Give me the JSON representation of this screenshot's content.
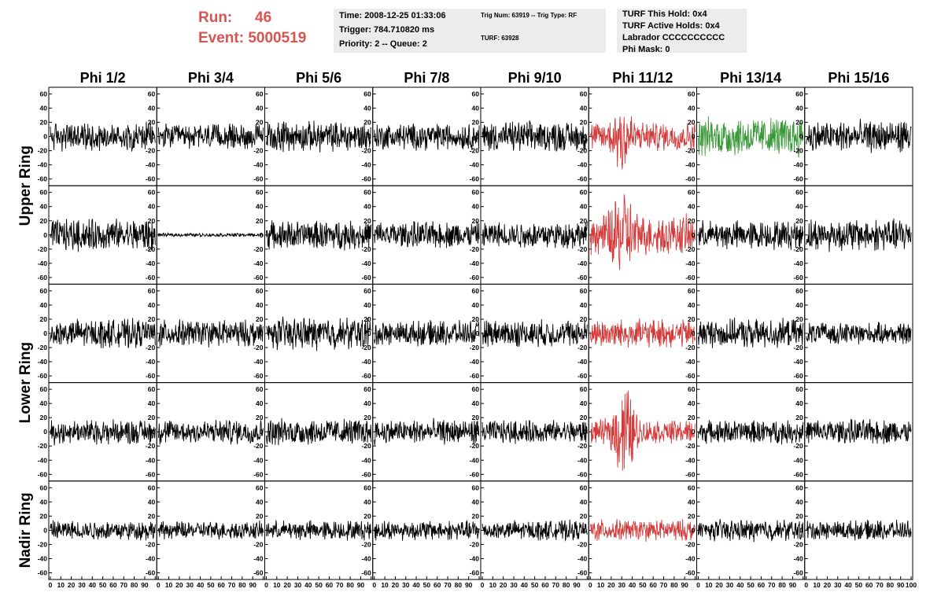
{
  "run": {
    "run_label": "Run:",
    "run_value": "46",
    "event_label": "Event:",
    "event_value": "5000519"
  },
  "info": {
    "time": "Time: 2008-12-25 01:33:06",
    "trigger": "Trigger: 784.710820 ms",
    "priority": "Priority: 2 -- Queue: 2",
    "trig_num": "Trig Num: 63919 -- Trig Type: RF",
    "turf": "TURF: 63928",
    "turf_hold": "TURF This Hold: 0x4",
    "turf_active": "TURF Active Holds: 0x4",
    "labrador": "Labrador CCCCCCCCCC",
    "phi_mask": "Phi Mask: 0"
  },
  "colors": {
    "normal": "#000000",
    "red": "#d43a3a",
    "green": "#3a9a3a",
    "run_text": "#d9534f",
    "info_bg": "#ececec"
  },
  "chart_data": {
    "type": "line",
    "columns": [
      "Phi 1/2",
      "Phi 3/4",
      "Phi 5/6",
      "Phi 7/8",
      "Phi 9/10",
      "Phi 11/12",
      "Phi 13/14",
      "Phi 15/16"
    ],
    "ring_labels": [
      "Upper Ring",
      "Lower Ring",
      "Nadir Ring"
    ],
    "ring_row_spans": [
      2,
      2,
      1
    ],
    "xlim": [
      0,
      100
    ],
    "ylim": [
      -65,
      65
    ],
    "yticks": [
      -60,
      -40,
      -20,
      0,
      20,
      40,
      60
    ],
    "ytick_labels": [
      "-60",
      "-40",
      "-20",
      "0",
      "20",
      "40",
      "60"
    ],
    "xticks": [
      0,
      10,
      20,
      30,
      40,
      50,
      60,
      70,
      80,
      90,
      100
    ],
    "xtick_labels": [
      "0",
      "10",
      "20",
      "30",
      "40",
      "50",
      "60",
      "70",
      "80",
      "90",
      "100"
    ],
    "panel_styles": [
      [
        {
          "col": "Phi 1/2",
          "color": "normal",
          "amp": 16
        },
        {
          "col": "Phi 3/4",
          "color": "normal",
          "amp": 14
        },
        {
          "col": "Phi 5/6",
          "color": "normal",
          "amp": 17
        },
        {
          "col": "Phi 7/8",
          "color": "normal",
          "amp": 15
        },
        {
          "col": "Phi 9/10",
          "color": "normal",
          "amp": 17
        },
        {
          "col": "Phi 11/12",
          "color": "red",
          "amp": 16
        },
        {
          "col": "Phi 13/14",
          "color": "green",
          "amp": 22
        },
        {
          "col": "Phi 15/16",
          "color": "normal",
          "amp": 18
        }
      ],
      [
        {
          "col": "Phi 1/2",
          "color": "normal",
          "amp": 18
        },
        {
          "col": "Phi 3/4",
          "color": "normal",
          "amp": 2
        },
        {
          "col": "Phi 5/6",
          "color": "normal",
          "amp": 16
        },
        {
          "col": "Phi 7/8",
          "color": "normal",
          "amp": 15
        },
        {
          "col": "Phi 9/10",
          "color": "normal",
          "amp": 15
        },
        {
          "col": "Phi 11/12",
          "color": "red",
          "amp": 22
        },
        {
          "col": "Phi 13/14",
          "color": "normal",
          "amp": 16
        },
        {
          "col": "Phi 15/16",
          "color": "normal",
          "amp": 18
        }
      ],
      [
        {
          "col": "Phi 1/2",
          "color": "normal",
          "amp": 16
        },
        {
          "col": "Phi 3/4",
          "color": "normal",
          "amp": 15
        },
        {
          "col": "Phi 5/6",
          "color": "normal",
          "amp": 18
        },
        {
          "col": "Phi 7/8",
          "color": "normal",
          "amp": 14
        },
        {
          "col": "Phi 9/10",
          "color": "normal",
          "amp": 15
        },
        {
          "col": "Phi 11/12",
          "color": "red",
          "amp": 16
        },
        {
          "col": "Phi 13/14",
          "color": "normal",
          "amp": 16
        },
        {
          "col": "Phi 15/16",
          "color": "normal",
          "amp": 12
        }
      ],
      [
        {
          "col": "Phi 1/2",
          "color": "normal",
          "amp": 14
        },
        {
          "col": "Phi 3/4",
          "color": "normal",
          "amp": 14
        },
        {
          "col": "Phi 5/6",
          "color": "normal",
          "amp": 15
        },
        {
          "col": "Phi 7/8",
          "color": "normal",
          "amp": 14
        },
        {
          "col": "Phi 9/10",
          "color": "normal",
          "amp": 13
        },
        {
          "col": "Phi 11/12",
          "color": "red",
          "amp": 13
        },
        {
          "col": "Phi 13/14",
          "color": "normal",
          "amp": 13
        },
        {
          "col": "Phi 15/16",
          "color": "normal",
          "amp": 14
        }
      ],
      [
        {
          "col": "Phi 1/2",
          "color": "normal",
          "amp": 11
        },
        {
          "col": "Phi 3/4",
          "color": "normal",
          "amp": 10
        },
        {
          "col": "Phi 5/6",
          "color": "normal",
          "amp": 11
        },
        {
          "col": "Phi 7/8",
          "color": "normal",
          "amp": 11
        },
        {
          "col": "Phi 9/10",
          "color": "normal",
          "amp": 11
        },
        {
          "col": "Phi 11/12",
          "color": "red",
          "amp": 12
        },
        {
          "col": "Phi 13/14",
          "color": "normal",
          "amp": 12
        },
        {
          "col": "Phi 15/16",
          "color": "normal",
          "amp": 11
        }
      ]
    ],
    "pulse_panels": [
      {
        "row": 0,
        "col": 5,
        "center": 30,
        "peak": 45
      },
      {
        "row": 1,
        "col": 5,
        "center": 30,
        "peak": 60
      },
      {
        "row": 3,
        "col": 5,
        "center": 32,
        "peak": 60
      }
    ]
  }
}
